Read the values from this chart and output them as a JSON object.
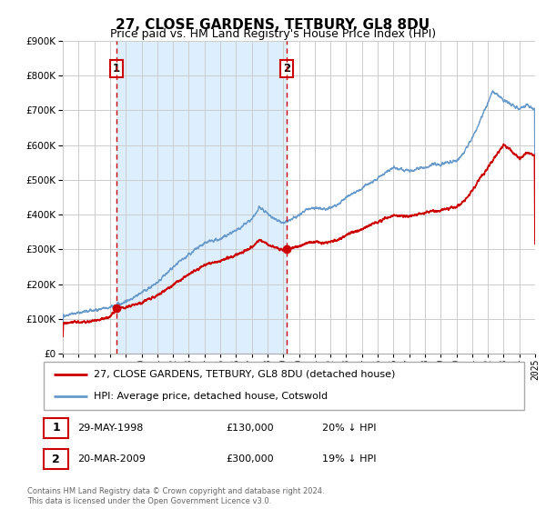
{
  "title": "27, CLOSE GARDENS, TETBURY, GL8 8DU",
  "subtitle": "Price paid vs. HM Land Registry's House Price Index (HPI)",
  "legend_line1": "27, CLOSE GARDENS, TETBURY, GL8 8DU (detached house)",
  "legend_line2": "HPI: Average price, detached house, Cotswold",
  "footnote1": "Contains HM Land Registry data © Crown copyright and database right 2024.",
  "footnote2": "This data is licensed under the Open Government Licence v3.0.",
  "purchase1_date": "29-MAY-1998",
  "purchase1_price": 130000,
  "purchase1_hpi": "20% ↓ HPI",
  "purchase1_year": 1998.41,
  "purchase2_date": "20-MAR-2009",
  "purchase2_price": 300000,
  "purchase2_hpi": "19% ↓ HPI",
  "purchase2_year": 2009.21,
  "xmin": 1995,
  "xmax": 2025,
  "ymin": 0,
  "ymax": 900000,
  "red_color": "#cc0000",
  "blue_color": "#6699cc",
  "shaded_color": "#ddeeff",
  "grid_color": "#cccccc",
  "label1": "1",
  "label2": "2",
  "title_fontsize": 11,
  "subtitle_fontsize": 9,
  "tick_fontsize": 7,
  "legend_fontsize": 8,
  "table_fontsize": 8,
  "footnote_fontsize": 6
}
